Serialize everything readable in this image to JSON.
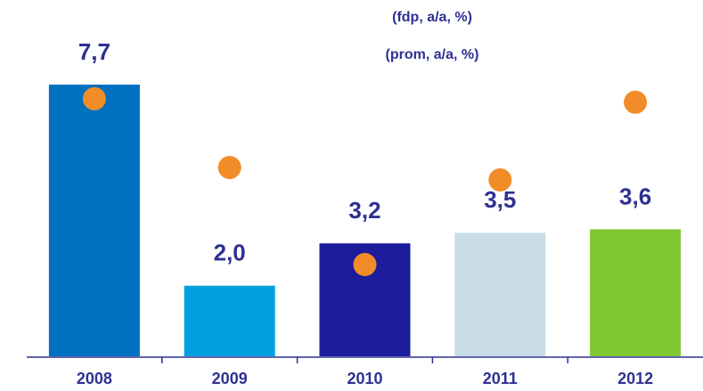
{
  "chart_data": {
    "type": "bar",
    "categories": [
      "2008",
      "2009",
      "2010",
      "2011",
      "2012"
    ],
    "series": [
      {
        "name": "(fdp, a/a, %)",
        "type": "bar",
        "colors": [
          "#0070c0",
          "#00a0e0",
          "#1c1c9c",
          "#c9dde6",
          "#80c832"
        ],
        "values": [
          7.7,
          2.0,
          3.2,
          3.5,
          3.6
        ],
        "value_labels": [
          "7,7",
          "2,0",
          "3,2",
          "3,5",
          "3,6"
        ]
      },
      {
        "name": "(prom, a/a, %)",
        "type": "scatter",
        "color": "#f28c28",
        "values": [
          7.3,
          5.35,
          2.6,
          5.0,
          7.2
        ]
      }
    ]
  }
}
